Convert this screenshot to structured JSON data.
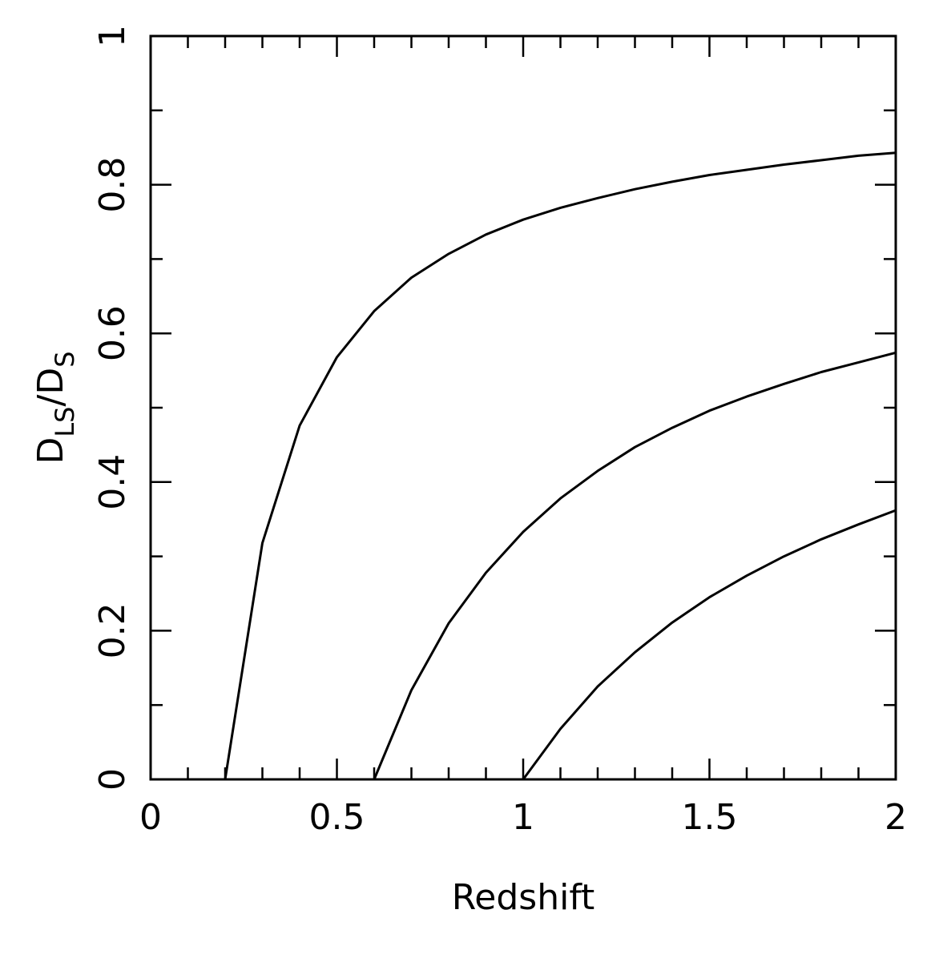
{
  "chart_data": {
    "type": "line",
    "title": "",
    "xlabel": "Redshift",
    "ylabel": {
      "main": "D",
      "sub": "LS",
      "slash": "/D",
      "sub2": "S"
    },
    "xlim": [
      0,
      2
    ],
    "ylim": [
      0,
      1
    ],
    "x_ticks": [
      0,
      0.5,
      1,
      1.5,
      2
    ],
    "x_tick_labels": [
      "0",
      "0.5",
      "1",
      "1.5",
      "2"
    ],
    "y_ticks": [
      0,
      0.2,
      0.4,
      0.6,
      0.8,
      1
    ],
    "y_tick_labels": [
      "0",
      "0.2",
      "0.4",
      "0.6",
      "0.8",
      "1"
    ],
    "x_minor_step": 0.1,
    "y_minor_step": 0.1,
    "grid": false,
    "legend": "none",
    "line_color": "#000000",
    "series": [
      {
        "x": [
          0.2,
          0.3,
          0.4,
          0.5,
          0.6,
          0.7,
          0.8,
          0.9,
          1.0,
          1.1,
          1.2,
          1.3,
          1.4,
          1.5,
          1.6,
          1.7,
          1.8,
          1.9,
          2.0
        ],
        "y": [
          0.0,
          0.318,
          0.476,
          0.568,
          0.63,
          0.675,
          0.707,
          0.733,
          0.753,
          0.769,
          0.782,
          0.794,
          0.804,
          0.813,
          0.82,
          0.827,
          0.833,
          0.839,
          0.843
        ]
      },
      {
        "x": [
          0.6,
          0.7,
          0.8,
          0.9,
          1.0,
          1.1,
          1.2,
          1.3,
          1.4,
          1.5,
          1.6,
          1.7,
          1.8,
          1.9,
          2.0
        ],
        "y": [
          0.0,
          0.12,
          0.21,
          0.278,
          0.333,
          0.378,
          0.415,
          0.447,
          0.473,
          0.496,
          0.515,
          0.532,
          0.548,
          0.561,
          0.574
        ]
      },
      {
        "x": [
          1.0,
          1.1,
          1.2,
          1.3,
          1.4,
          1.5,
          1.6,
          1.7,
          1.8,
          1.9,
          2.0
        ],
        "y": [
          0.0,
          0.068,
          0.125,
          0.171,
          0.211,
          0.245,
          0.274,
          0.3,
          0.323,
          0.343,
          0.362
        ]
      }
    ]
  }
}
